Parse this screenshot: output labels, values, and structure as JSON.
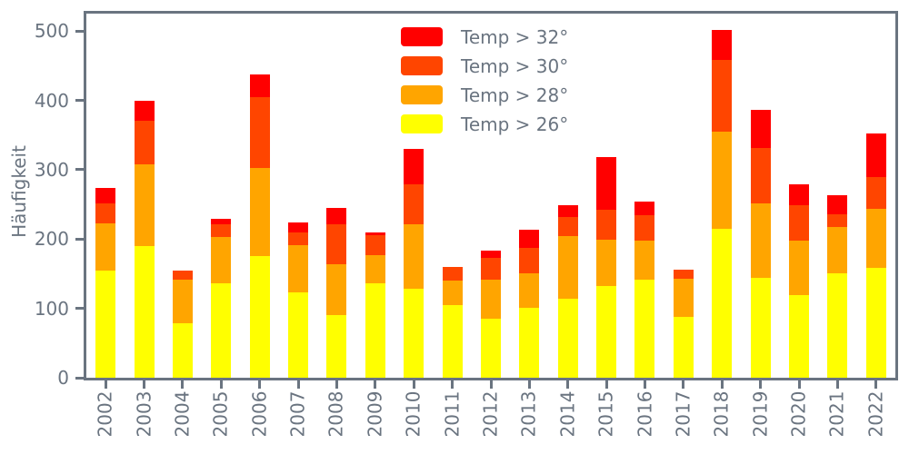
{
  "figure": {
    "title": "",
    "ylabel": "Häufigkeit",
    "background": "#ffffff",
    "axis_color": "#6a7480",
    "text_color": "#6a7480"
  },
  "legend": {
    "position": "upper center",
    "items": [
      {
        "label": "Temp > 32°",
        "color": "#ff0000"
      },
      {
        "label": "Temp > 30°",
        "color": "#ff4500"
      },
      {
        "label": "Temp > 28°",
        "color": "#ffa500"
      },
      {
        "label": "Temp > 26°",
        "color": "#ffff00"
      }
    ]
  },
  "chart_data": {
    "type": "bar",
    "stacked": true,
    "title": "",
    "xlabel": "",
    "ylabel": "Häufigkeit",
    "grid": false,
    "legend_position": "upper center",
    "categories": [
      "2002",
      "2003",
      "2004",
      "2005",
      "2006",
      "2007",
      "2008",
      "2009",
      "2010",
      "2011",
      "2012",
      "2013",
      "2014",
      "2015",
      "2016",
      "2017",
      "2018",
      "2019",
      "2020",
      "2021",
      "2022"
    ],
    "series": [
      {
        "name": "Temp > 26°",
        "color": "#ffff00",
        "values": [
          155,
          190,
          79,
          136,
          175,
          123,
          91,
          136,
          129,
          105,
          85,
          101,
          114,
          132,
          142,
          88,
          215,
          144,
          119,
          151,
          158
        ]
      },
      {
        "name": "Temp > 28°",
        "color": "#ffa500",
        "values": [
          68,
          118,
          63,
          67,
          127,
          68,
          73,
          41,
          92,
          35,
          56,
          50,
          90,
          67,
          56,
          55,
          140,
          108,
          79,
          67,
          86
        ]
      },
      {
        "name": "Temp > 30°",
        "color": "#ff4500",
        "values": [
          29,
          63,
          12,
          19,
          103,
          19,
          57,
          29,
          58,
          20,
          32,
          37,
          28,
          44,
          36,
          13,
          103,
          80,
          51,
          18,
          45
        ]
      },
      {
        "name": "Temp > 32°",
        "color": "#ff0000",
        "values": [
          22,
          29,
          0,
          7,
          32,
          14,
          24,
          3,
          51,
          0,
          10,
          25,
          17,
          75,
          20,
          0,
          44,
          55,
          30,
          27,
          63
        ]
      }
    ],
    "totals": [
      274,
      400,
      154,
      229,
      437,
      224,
      245,
      209,
      330,
      160,
      183,
      213,
      249,
      318,
      254,
      156,
      502,
      387,
      279,
      263,
      352
    ],
    "yticks": [
      0,
      100,
      200,
      300,
      400,
      500
    ],
    "ylim": [
      0,
      524
    ]
  }
}
